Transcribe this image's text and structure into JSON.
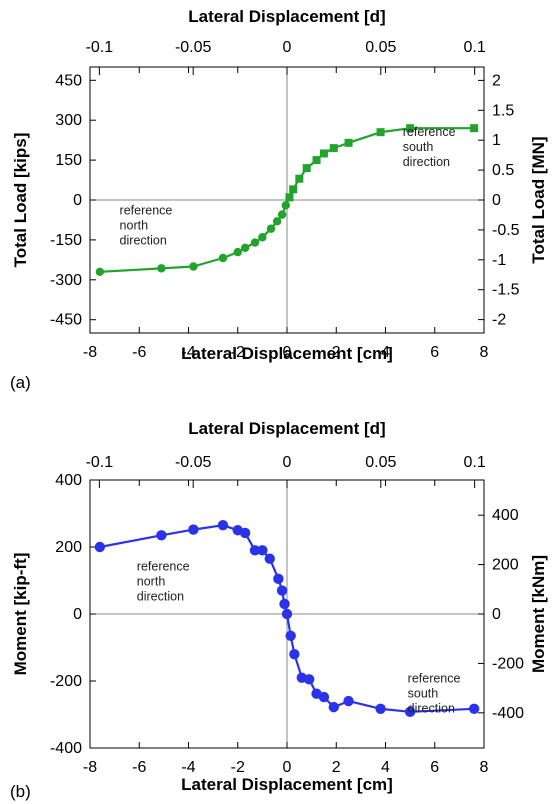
{
  "chart_data": [
    {
      "type": "line",
      "panel_label": "(a)",
      "xlabel": "Lateral Displacement [cm]",
      "x2label": "Lateral Displacement [d]",
      "ylabel": "Total Load [kips]",
      "y2label": "Total Load [MN]",
      "xlim": [
        -8,
        8
      ],
      "ylim": [
        -500,
        500
      ],
      "y2lim": [
        -2.224,
        2.224
      ],
      "x_ticks": [
        -8,
        -6,
        -4,
        -2,
        0,
        2,
        4,
        6,
        8
      ],
      "x_tick_labels": [
        "-8",
        "-6",
        "-4",
        "-2",
        "0",
        "2",
        "4",
        "6",
        "8"
      ],
      "x2_ticks": [
        -0.1,
        -0.05,
        0,
        0.05,
        0.1
      ],
      "x2_tick_labels": [
        "-0.1",
        "-0.05",
        "0",
        "0.05",
        "0.1"
      ],
      "x2_scale_cm_per_unit": 76.2,
      "y_ticks": [
        -450,
        -300,
        -150,
        0,
        150,
        300,
        450
      ],
      "y_tick_labels": [
        "-450",
        "-300",
        "-150",
        "0",
        "150",
        "300",
        "450"
      ],
      "y2_ticks": [
        -2,
        -1.5,
        -1,
        -0.5,
        0,
        0.5,
        1,
        1.5,
        2
      ],
      "y2_tick_labels": [
        "-2",
        "-1.5",
        "-1",
        "-0.5",
        "0",
        "0.5",
        "1",
        "1.5",
        "2"
      ],
      "grid": false,
      "series": [
        {
          "color": "#22a32c",
          "marker_negative": "circle",
          "marker_positive": "square",
          "x": [
            -7.6,
            -5.1,
            -3.8,
            -2.6,
            -2.0,
            -1.7,
            -1.3,
            -1.0,
            -0.65,
            -0.4,
            -0.2,
            -0.05,
            0.1,
            0.25,
            0.5,
            0.8,
            1.2,
            1.5,
            1.9,
            2.5,
            3.8,
            5.0,
            7.6
          ],
          "y": [
            -270,
            -257,
            -250,
            -218,
            -196,
            -180,
            -160,
            -140,
            -108,
            -80,
            -55,
            -20,
            10,
            40,
            80,
            120,
            150,
            175,
            195,
            215,
            255,
            270,
            270
          ]
        }
      ],
      "annotations": [
        {
          "lines": [
            "reference",
            "north",
            "direction"
          ],
          "x": -6.8,
          "y": -55
        },
        {
          "lines": [
            "reference",
            "south",
            "direction"
          ],
          "x": 4.7,
          "y": 240
        }
      ]
    },
    {
      "type": "line",
      "panel_label": "(b)",
      "xlabel": "Lateral Displacement [cm]",
      "x2label": "Lateral Displacement [d]",
      "ylabel": "Moment [kip-ft]",
      "y2label": "Moment [kNm]",
      "xlim": [
        -8,
        8
      ],
      "ylim": [
        -400,
        400
      ],
      "y2lim": [
        -542.3,
        542.3
      ],
      "x_ticks": [
        -8,
        -6,
        -4,
        -2,
        0,
        2,
        4,
        6,
        8
      ],
      "x_tick_labels": [
        "-8",
        "-6",
        "-4",
        "-2",
        "0",
        "2",
        "4",
        "6",
        "8"
      ],
      "x2_ticks": [
        -0.1,
        -0.05,
        0,
        0.05,
        0.1
      ],
      "x2_tick_labels": [
        "-0.1",
        "-0.05",
        "0",
        "0.05",
        "0.1"
      ],
      "x2_scale_cm_per_unit": 76.2,
      "y_ticks": [
        -400,
        -200,
        0,
        200,
        400
      ],
      "y_tick_labels": [
        "-400",
        "-200",
        "0",
        "200",
        "400"
      ],
      "y2_ticks": [
        -400,
        -200,
        0,
        200,
        400
      ],
      "y2_tick_labels": [
        "-400",
        "-200",
        "0",
        "200",
        "400"
      ],
      "grid": false,
      "series": [
        {
          "color": "#2a33e8",
          "marker": "circle",
          "x": [
            -7.6,
            -5.1,
            -3.8,
            -2.6,
            -2.0,
            -1.7,
            -1.3,
            -1.0,
            -0.7,
            -0.35,
            -0.2,
            -0.1,
            0.0,
            0.15,
            0.3,
            0.6,
            0.9,
            1.2,
            1.5,
            1.9,
            2.5,
            3.8,
            5.0,
            7.6
          ],
          "y": [
            200,
            235,
            252,
            265,
            250,
            242,
            190,
            190,
            165,
            105,
            70,
            30,
            0,
            -65,
            -120,
            -190,
            -195,
            -238,
            -248,
            -278,
            -260,
            -283,
            -292,
            -283
          ]
        }
      ],
      "annotations": [
        {
          "lines": [
            "reference",
            "north",
            "direction"
          ],
          "x": -6.1,
          "y": 130
        },
        {
          "lines": [
            "reference",
            "south",
            "direction"
          ],
          "x": 4.9,
          "y": -205
        }
      ]
    }
  ]
}
